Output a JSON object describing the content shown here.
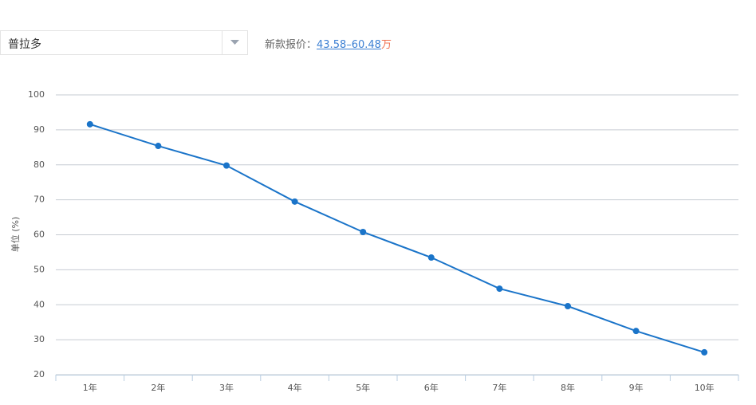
{
  "selector": {
    "value": "普拉多"
  },
  "price": {
    "label": "新款报价：",
    "range": "43.58–60.48",
    "unit": "万"
  },
  "chart_data": {
    "type": "line",
    "ylabel": "单位 (%)",
    "categories": [
      "1年",
      "2年",
      "3年",
      "4年",
      "5年",
      "6年",
      "7年",
      "8年",
      "9年",
      "10年"
    ],
    "values": [
      91.6,
      85.4,
      79.8,
      69.5,
      60.8,
      53.5,
      44.6,
      39.6,
      32.5,
      26.4
    ],
    "color": "#1a74c9",
    "ylim": [
      20,
      100
    ],
    "yticks": [
      20,
      30,
      40,
      50,
      60,
      70,
      80,
      90,
      100
    ],
    "grid": true
  }
}
